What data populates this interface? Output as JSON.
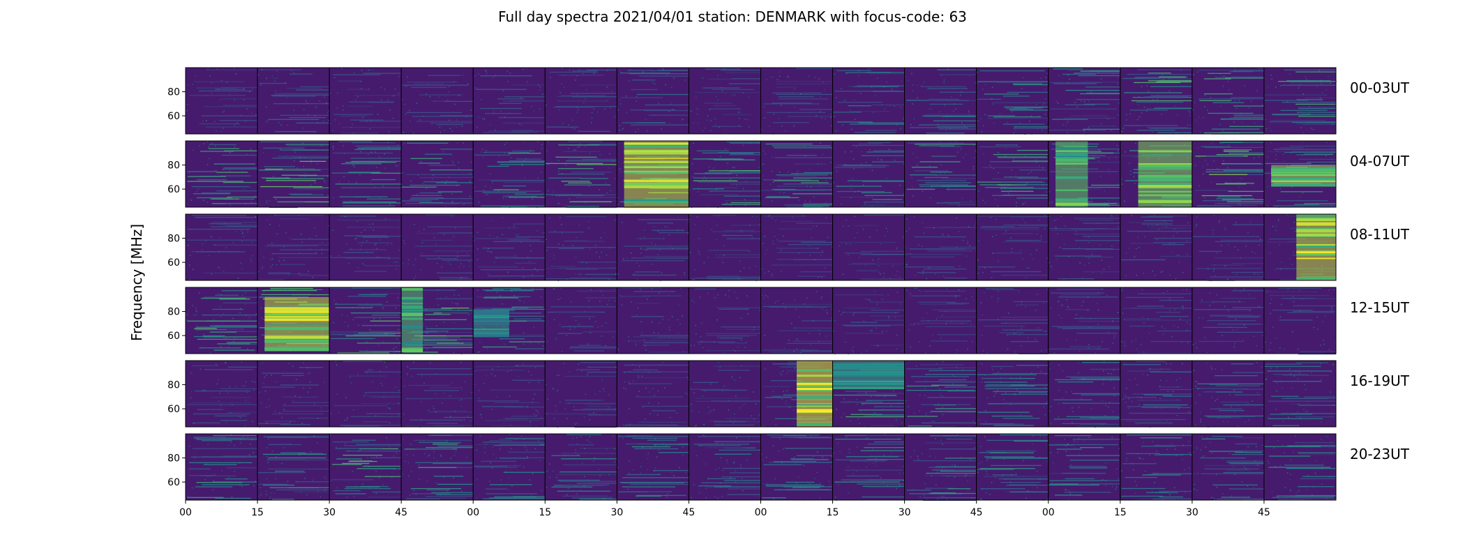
{
  "chart_data": {
    "type": "heatmap",
    "title": "Full day spectra 2021/04/01 station: DENMARK with focus-code: 63",
    "ylabel": "Frequency [MHz]",
    "colormap": "viridis",
    "colors": {
      "low": "#440154",
      "mid": "#21918c",
      "high": "#fde725",
      "background": "#461b6e"
    },
    "y_ticks": [
      60,
      80
    ],
    "ylim": [
      45,
      100
    ],
    "x_tick_labels": [
      "00",
      "15",
      "30",
      "45",
      "00",
      "15",
      "30",
      "45",
      "00",
      "15",
      "30",
      "45",
      "00",
      "15",
      "30",
      "45"
    ],
    "rows": [
      {
        "label": "00-03UT",
        "activity": [
          0.1,
          0.15,
          0.1,
          0.1,
          0.15,
          0.1,
          0.2,
          0.1,
          0.1,
          0.25,
          0.25,
          0.3,
          0.35,
          0.45,
          0.4,
          0.4
        ],
        "bursts": []
      },
      {
        "label": "04-07UT",
        "activity": [
          0.4,
          0.45,
          0.35,
          0.35,
          0.4,
          0.45,
          0.5,
          0.45,
          0.4,
          0.3,
          0.35,
          0.4,
          0.4,
          0.35,
          0.5,
          0.35
        ],
        "bursts": [
          {
            "panel": 6,
            "x0": 0.1,
            "x1": 1.0,
            "f0": 45,
            "f1": 100,
            "strength": 0.9
          },
          {
            "panel": 12,
            "x0": 0.1,
            "x1": 0.55,
            "f0": 45,
            "f1": 100,
            "strength": 0.75
          },
          {
            "panel": 13,
            "x0": 0.25,
            "x1": 1.0,
            "f0": 45,
            "f1": 100,
            "strength": 0.8
          },
          {
            "panel": 15,
            "x0": 0.1,
            "x1": 1.0,
            "f0": 62,
            "f1": 80,
            "strength": 0.85
          }
        ]
      },
      {
        "label": "08-11UT",
        "activity": [
          0.1,
          0.1,
          0.1,
          0.1,
          0.1,
          0.1,
          0.1,
          0.1,
          0.1,
          0.1,
          0.1,
          0.1,
          0.12,
          0.12,
          0.12,
          0.15
        ],
        "bursts": [
          {
            "panel": 15,
            "x0": 0.45,
            "x1": 1.0,
            "f0": 45,
            "f1": 100,
            "strength": 0.9
          }
        ]
      },
      {
        "label": "12-15UT",
        "activity": [
          0.45,
          0.5,
          0.45,
          0.5,
          0.35,
          0.1,
          0.1,
          0.1,
          0.1,
          0.1,
          0.1,
          0.1,
          0.1,
          0.1,
          0.1,
          0.1
        ],
        "bursts": [
          {
            "panel": 1,
            "x0": 0.1,
            "x1": 1.0,
            "f0": 47,
            "f1": 92,
            "strength": 0.9
          },
          {
            "panel": 3,
            "x0": 0.0,
            "x1": 0.3,
            "f0": 47,
            "f1": 100,
            "strength": 0.7
          },
          {
            "panel": 4,
            "x0": 0.0,
            "x1": 0.5,
            "f0": 60,
            "f1": 82,
            "strength": 0.55
          }
        ]
      },
      {
        "label": "16-19UT",
        "activity": [
          0.1,
          0.1,
          0.1,
          0.1,
          0.1,
          0.1,
          0.1,
          0.1,
          0.2,
          0.4,
          0.35,
          0.3,
          0.25,
          0.25,
          0.25,
          0.25
        ],
        "bursts": [
          {
            "panel": 8,
            "x0": 0.5,
            "x1": 1.0,
            "f0": 45,
            "f1": 100,
            "strength": 0.95
          },
          {
            "panel": 9,
            "x0": 0.0,
            "x1": 1.0,
            "f0": 78,
            "f1": 100,
            "strength": 0.6
          }
        ]
      },
      {
        "label": "20-23UT",
        "activity": [
          0.35,
          0.3,
          0.4,
          0.35,
          0.3,
          0.3,
          0.3,
          0.25,
          0.3,
          0.3,
          0.35,
          0.3,
          0.3,
          0.3,
          0.3,
          0.3
        ],
        "bursts": []
      }
    ]
  }
}
